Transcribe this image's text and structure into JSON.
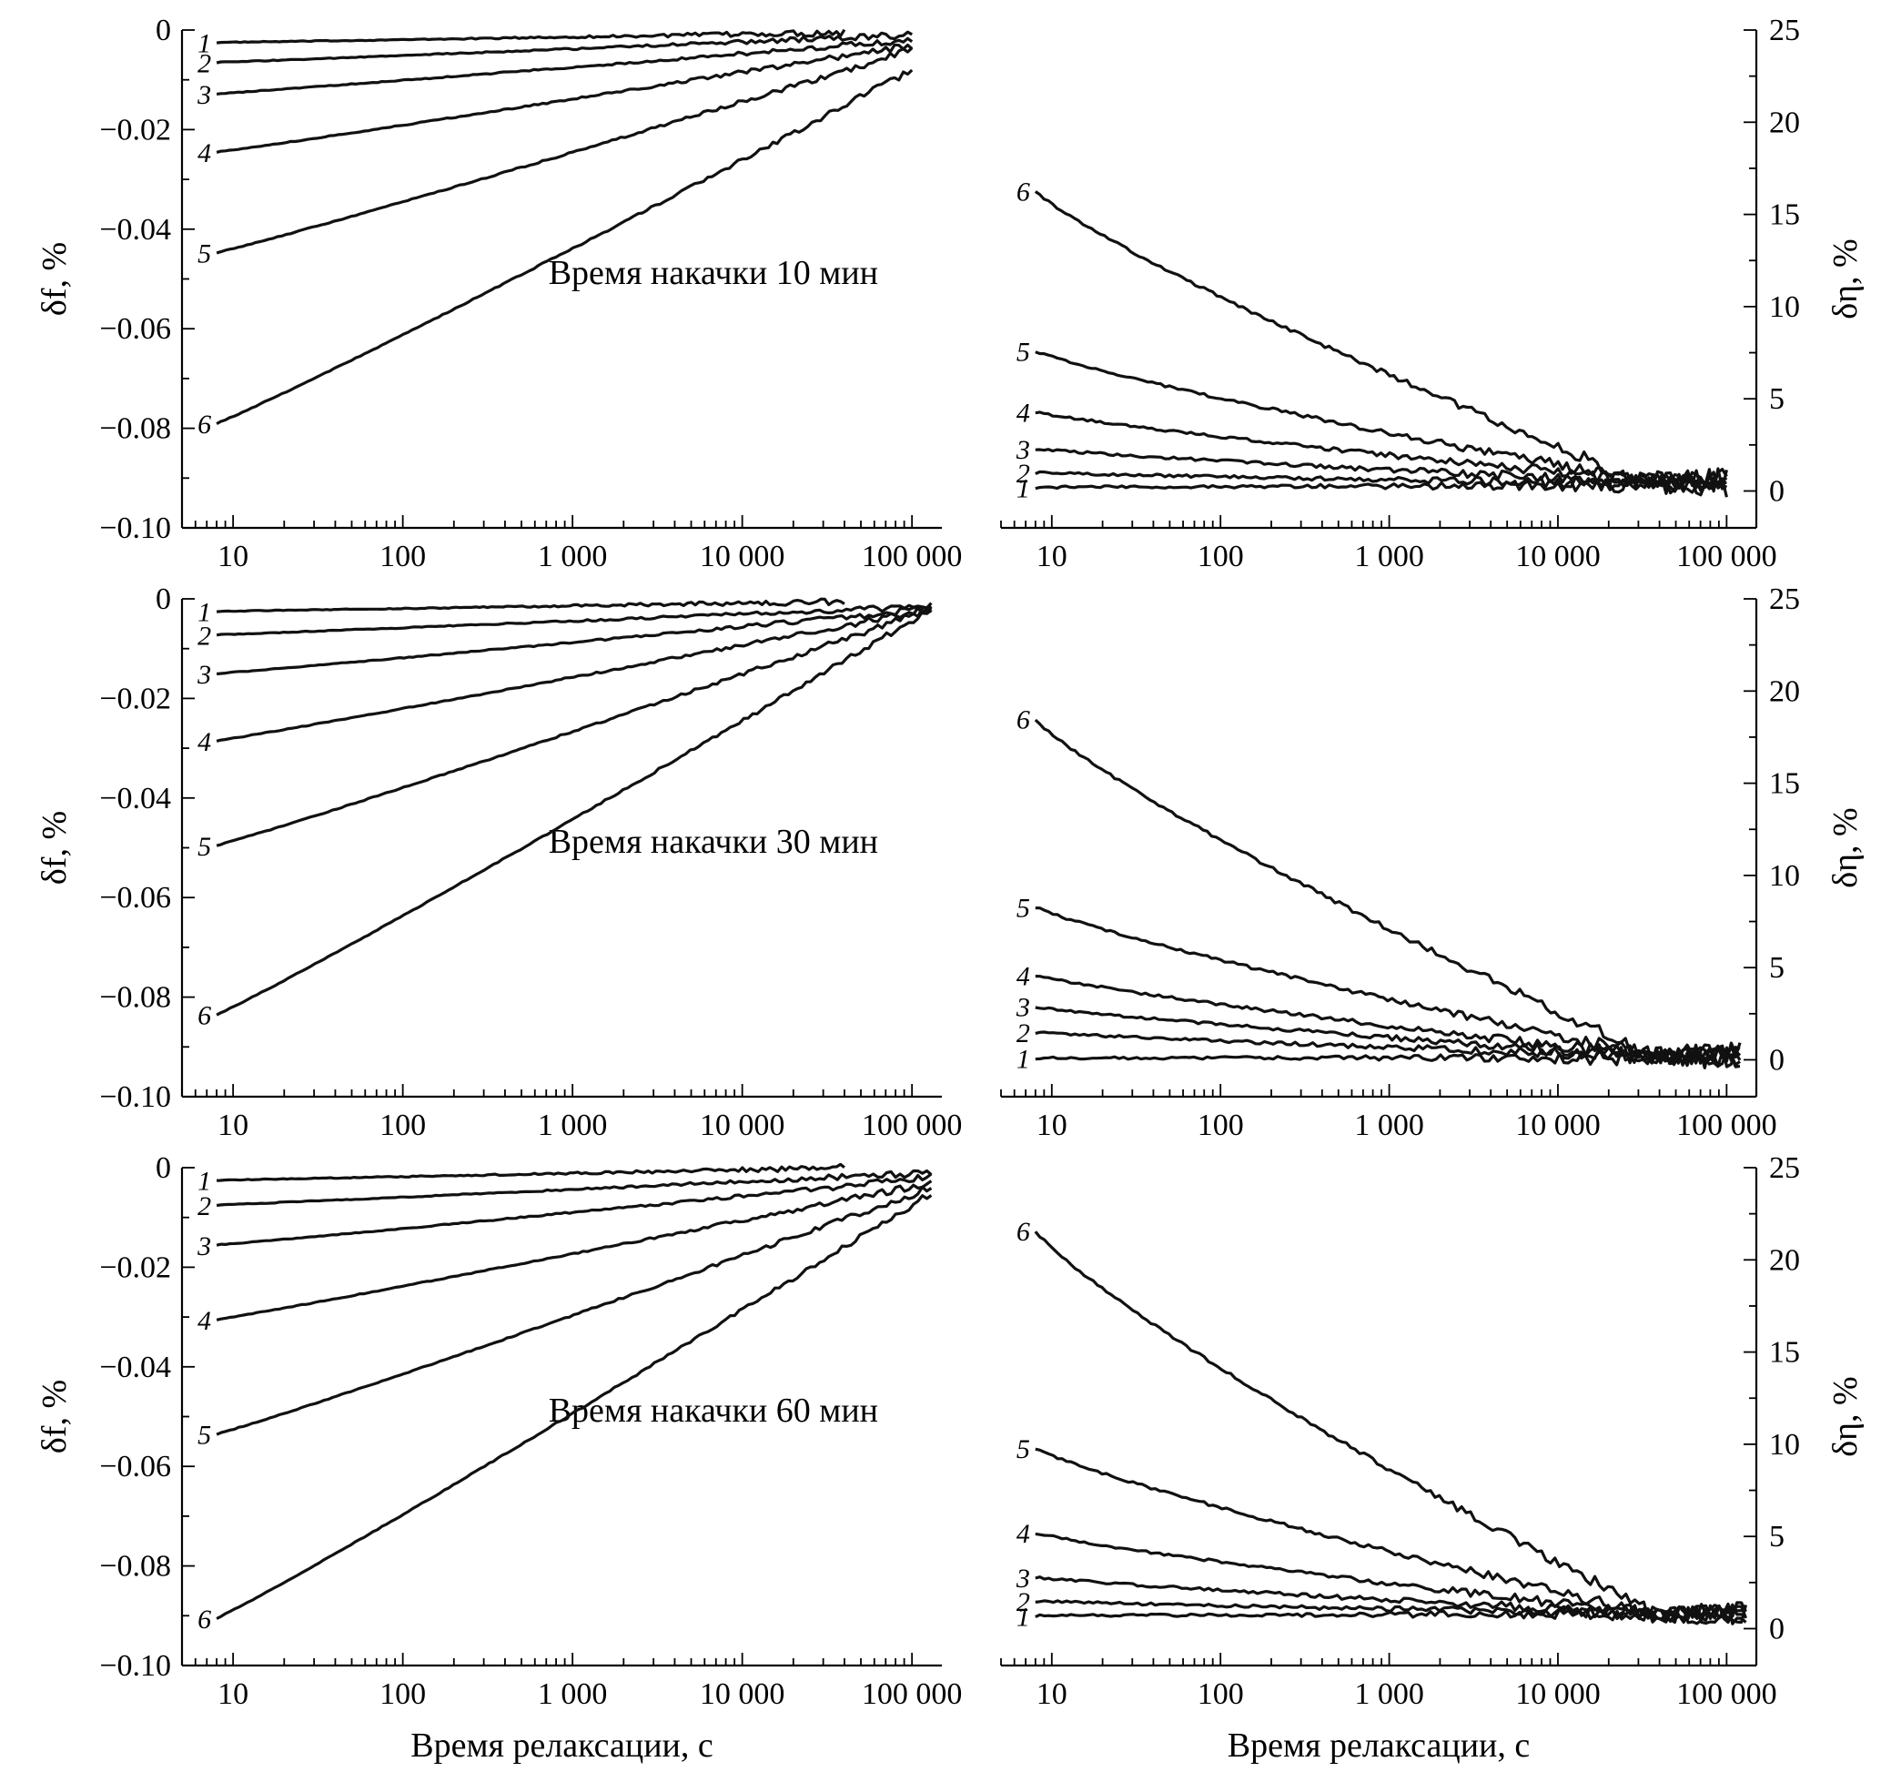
{
  "chart_data": [
    {
      "type": "line",
      "annotation": "Время накачки 10 мин",
      "xlabel": "",
      "ylabel": "δf, %",
      "xscale": "log",
      "xlim": [
        5,
        150000
      ],
      "ylim": [
        -0.1,
        0
      ],
      "xticks": [
        10,
        100,
        1000,
        10000,
        100000
      ],
      "xtick_labels": [
        "10",
        "100",
        "1 000",
        "10 000",
        "100 000"
      ],
      "yticks": [
        0,
        -0.02,
        -0.04,
        -0.06,
        -0.08,
        -0.1
      ],
      "ytick_labels": [
        "0",
        "−0.02",
        "−0.04",
        "−0.06",
        "−0.08",
        "−0.10"
      ],
      "x_start": 8,
      "series": [
        {
          "name": "1",
          "x_end": 40000,
          "start": -0.0025,
          "end": -0.0005
        },
        {
          "name": "2",
          "x_end": 100000,
          "start": -0.0065,
          "end": -0.001
        },
        {
          "name": "3",
          "x_end": 100000,
          "start": -0.0128,
          "end": -0.002
        },
        {
          "name": "4",
          "x_end": 100000,
          "start": -0.0245,
          "end": -0.003
        },
        {
          "name": "5",
          "x_end": 100000,
          "start": -0.0447,
          "end": -0.004
        },
        {
          "name": "6",
          "x_end": 100000,
          "start": -0.079,
          "end": -0.008
        }
      ]
    },
    {
      "type": "line",
      "annotation": "",
      "xlabel": "",
      "ylabel": "δη, %",
      "xscale": "log",
      "xlim": [
        5,
        150000
      ],
      "ylim": [
        -2,
        25
      ],
      "xticks": [
        10,
        100,
        1000,
        10000,
        100000
      ],
      "xtick_labels": [
        "10",
        "100",
        "1 000",
        "10 000",
        "100 000"
      ],
      "yticks": [
        0,
        5,
        10,
        15,
        20,
        25
      ],
      "ytick_labels": [
        "0",
        "5",
        "10",
        "15",
        "20",
        "25"
      ],
      "x_start": 8,
      "series": [
        {
          "name": "1",
          "x_end": 100000,
          "start": 0.2,
          "end": 0.3
        },
        {
          "name": "2",
          "x_end": 100000,
          "start": 1.0,
          "end": 0.4
        },
        {
          "name": "3",
          "x_end": 100000,
          "start": 2.3,
          "end": 0.5
        },
        {
          "name": "4",
          "x_end": 100000,
          "start": 4.3,
          "end": 0.6
        },
        {
          "name": "5",
          "x_end": 100000,
          "start": 7.6,
          "end": 0.6
        },
        {
          "name": "6",
          "x_end": 100000,
          "start": 16.3,
          "end": 0.6
        }
      ]
    },
    {
      "type": "line",
      "annotation": "Время накачки 30 мин",
      "xlabel": "",
      "ylabel": "δf, %",
      "xscale": "log",
      "xlim": [
        5,
        150000
      ],
      "ylim": [
        -0.1,
        0
      ],
      "xticks": [
        10,
        100,
        1000,
        10000,
        100000
      ],
      "xtick_labels": [
        "10",
        "100",
        "1 000",
        "10 000",
        "100 000"
      ],
      "yticks": [
        0,
        -0.02,
        -0.04,
        -0.06,
        -0.08,
        -0.1
      ],
      "ytick_labels": [
        "0",
        "−0.02",
        "−0.04",
        "−0.06",
        "−0.08",
        "−0.10"
      ],
      "x_start": 8,
      "series": [
        {
          "name": "1",
          "x_end": 40000,
          "start": -0.0025,
          "end": -0.0005
        },
        {
          "name": "2",
          "x_end": 130000,
          "start": -0.0072,
          "end": -0.0015
        },
        {
          "name": "3",
          "x_end": 130000,
          "start": -0.015,
          "end": -0.002
        },
        {
          "name": "4",
          "x_end": 130000,
          "start": -0.0285,
          "end": -0.002
        },
        {
          "name": "5",
          "x_end": 130000,
          "start": -0.0495,
          "end": -0.002
        },
        {
          "name": "6",
          "x_end": 130000,
          "start": -0.0835,
          "end": -0.002
        }
      ]
    },
    {
      "type": "line",
      "annotation": "",
      "xlabel": "",
      "ylabel": "δη, %",
      "xscale": "log",
      "xlim": [
        5,
        150000
      ],
      "ylim": [
        -2,
        25
      ],
      "xticks": [
        10,
        100,
        1000,
        10000,
        100000
      ],
      "xtick_labels": [
        "10",
        "100",
        "1 000",
        "10 000",
        "100 000"
      ],
      "yticks": [
        0,
        5,
        10,
        15,
        20,
        25
      ],
      "ytick_labels": [
        "0",
        "5",
        "10",
        "15",
        "20",
        "25"
      ],
      "x_start": 8,
      "series": [
        {
          "name": "1",
          "x_end": 120000,
          "start": 0.1,
          "end": 0.1
        },
        {
          "name": "2",
          "x_end": 120000,
          "start": 1.5,
          "end": 0.2
        },
        {
          "name": "3",
          "x_end": 120000,
          "start": 2.9,
          "end": 0.2
        },
        {
          "name": "4",
          "x_end": 120000,
          "start": 4.6,
          "end": 0.2
        },
        {
          "name": "5",
          "x_end": 120000,
          "start": 8.3,
          "end": 0.3
        },
        {
          "name": "6",
          "x_end": 120000,
          "start": 18.5,
          "end": 0.3
        }
      ]
    },
    {
      "type": "line",
      "annotation": "Время накачки 60 мин",
      "xlabel": "Время релаксации, с",
      "ylabel": "δf, %",
      "xscale": "log",
      "xlim": [
        5,
        150000
      ],
      "ylim": [
        -0.1,
        0
      ],
      "xticks": [
        10,
        100,
        1000,
        10000,
        100000
      ],
      "xtick_labels": [
        "10",
        "100",
        "1 000",
        "10 000",
        "100 000"
      ],
      "yticks": [
        0,
        -0.02,
        -0.04,
        -0.06,
        -0.08,
        -0.1
      ],
      "ytick_labels": [
        "0",
        "−0.02",
        "−0.04",
        "−0.06",
        "−0.08",
        "−0.10"
      ],
      "x_start": 8,
      "series": [
        {
          "name": "1",
          "x_end": 40000,
          "start": -0.0025,
          "end": 0.0
        },
        {
          "name": "2",
          "x_end": 130000,
          "start": -0.0075,
          "end": -0.001
        },
        {
          "name": "3",
          "x_end": 130000,
          "start": -0.0155,
          "end": -0.002
        },
        {
          "name": "4",
          "x_end": 130000,
          "start": -0.0305,
          "end": -0.003
        },
        {
          "name": "5",
          "x_end": 130000,
          "start": -0.0535,
          "end": -0.004
        },
        {
          "name": "6",
          "x_end": 130000,
          "start": -0.0905,
          "end": -0.005
        }
      ]
    },
    {
      "type": "line",
      "annotation": "",
      "xlabel": "Время релаксации, с",
      "ylabel": "δη, %",
      "xscale": "log",
      "xlim": [
        5,
        150000
      ],
      "ylim": [
        -2,
        25
      ],
      "xticks": [
        10,
        100,
        1000,
        10000,
        100000
      ],
      "xtick_labels": [
        "10",
        "100",
        "1 000",
        "10 000",
        "100 000"
      ],
      "yticks": [
        0,
        5,
        10,
        15,
        20,
        25
      ],
      "ytick_labels": [
        "0",
        "5",
        "10",
        "15",
        "20",
        "25"
      ],
      "x_start": 8,
      "series": [
        {
          "name": "1",
          "x_end": 130000,
          "start": 0.7,
          "end": 0.8
        },
        {
          "name": "2",
          "x_end": 130000,
          "start": 1.5,
          "end": 0.8
        },
        {
          "name": "3",
          "x_end": 130000,
          "start": 2.8,
          "end": 0.8
        },
        {
          "name": "4",
          "x_end": 130000,
          "start": 5.2,
          "end": 0.8
        },
        {
          "name": "5",
          "x_end": 130000,
          "start": 9.8,
          "end": 0.8
        },
        {
          "name": "6",
          "x_end": 130000,
          "start": 21.6,
          "end": 0.8
        }
      ]
    }
  ]
}
